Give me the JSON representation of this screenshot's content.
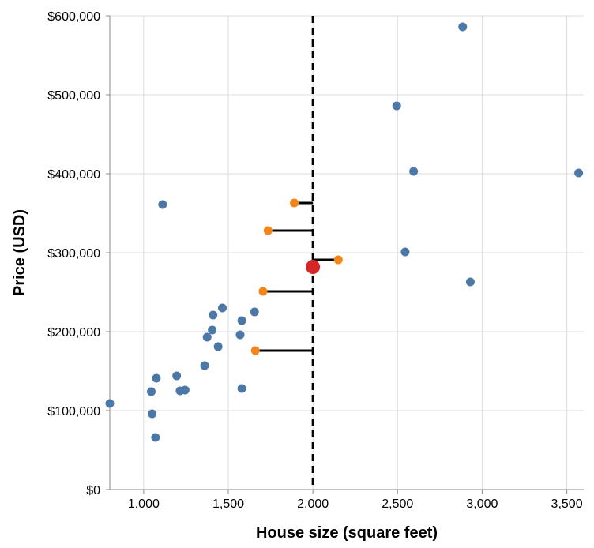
{
  "chart_data": {
    "type": "scatter",
    "title": "",
    "xlabel": "House size (square feet)",
    "ylabel": "Price (USD)",
    "xlim": [
      800,
      3600
    ],
    "ylim": [
      0,
      600000
    ],
    "grid": true,
    "x_ticks": [
      {
        "value": 1000,
        "label": "1,000"
      },
      {
        "value": 1500,
        "label": "1,500"
      },
      {
        "value": 2000,
        "label": "2,000"
      },
      {
        "value": 2500,
        "label": "2,500"
      },
      {
        "value": 3000,
        "label": "3,000"
      },
      {
        "value": 3500,
        "label": "3,500"
      }
    ],
    "y_ticks": [
      {
        "value": 0,
        "label": "$0"
      },
      {
        "value": 100000,
        "label": "$100,000"
      },
      {
        "value": 200000,
        "label": "$200,000"
      },
      {
        "value": 300000,
        "label": "$300,000"
      },
      {
        "value": 400000,
        "label": "$400,000"
      },
      {
        "value": 500000,
        "label": "$500,000"
      },
      {
        "value": 600000,
        "label": "$600,000"
      }
    ],
    "colors": {
      "houses": "#4c78a8",
      "nearest": "#f58518",
      "query": "#d62728",
      "reference": "#000000",
      "connector": "#000000"
    },
    "reference_line_x": 2000,
    "query_point": {
      "x": 2000,
      "y": 282000
    },
    "series": [
      {
        "key": "houses",
        "points": [
          {
            "x": 800,
            "y": 109000
          },
          {
            "x": 1045,
            "y": 124000
          },
          {
            "x": 1050,
            "y": 96000
          },
          {
            "x": 1070,
            "y": 66000
          },
          {
            "x": 1075,
            "y": 141000
          },
          {
            "x": 1112,
            "y": 361000
          },
          {
            "x": 1195,
            "y": 144000
          },
          {
            "x": 1215,
            "y": 125000
          },
          {
            "x": 1245,
            "y": 126000
          },
          {
            "x": 1360,
            "y": 157000
          },
          {
            "x": 1375,
            "y": 193000
          },
          {
            "x": 1405,
            "y": 202000
          },
          {
            "x": 1410,
            "y": 221000
          },
          {
            "x": 1440,
            "y": 181000
          },
          {
            "x": 1465,
            "y": 230000
          },
          {
            "x": 1570,
            "y": 196000
          },
          {
            "x": 1580,
            "y": 214000
          },
          {
            "x": 1580,
            "y": 128000
          },
          {
            "x": 1655,
            "y": 225000
          },
          {
            "x": 2495,
            "y": 486000
          },
          {
            "x": 2545,
            "y": 301000
          },
          {
            "x": 2595,
            "y": 403000
          },
          {
            "x": 2885,
            "y": 586000
          },
          {
            "x": 2930,
            "y": 263000
          },
          {
            "x": 3570,
            "y": 401000
          }
        ]
      },
      {
        "key": "nearest",
        "points": [
          {
            "x": 1890,
            "y": 363000
          },
          {
            "x": 1735,
            "y": 328000
          },
          {
            "x": 2150,
            "y": 291000
          },
          {
            "x": 1705,
            "y": 251000
          },
          {
            "x": 1660,
            "y": 176000
          }
        ]
      }
    ]
  }
}
